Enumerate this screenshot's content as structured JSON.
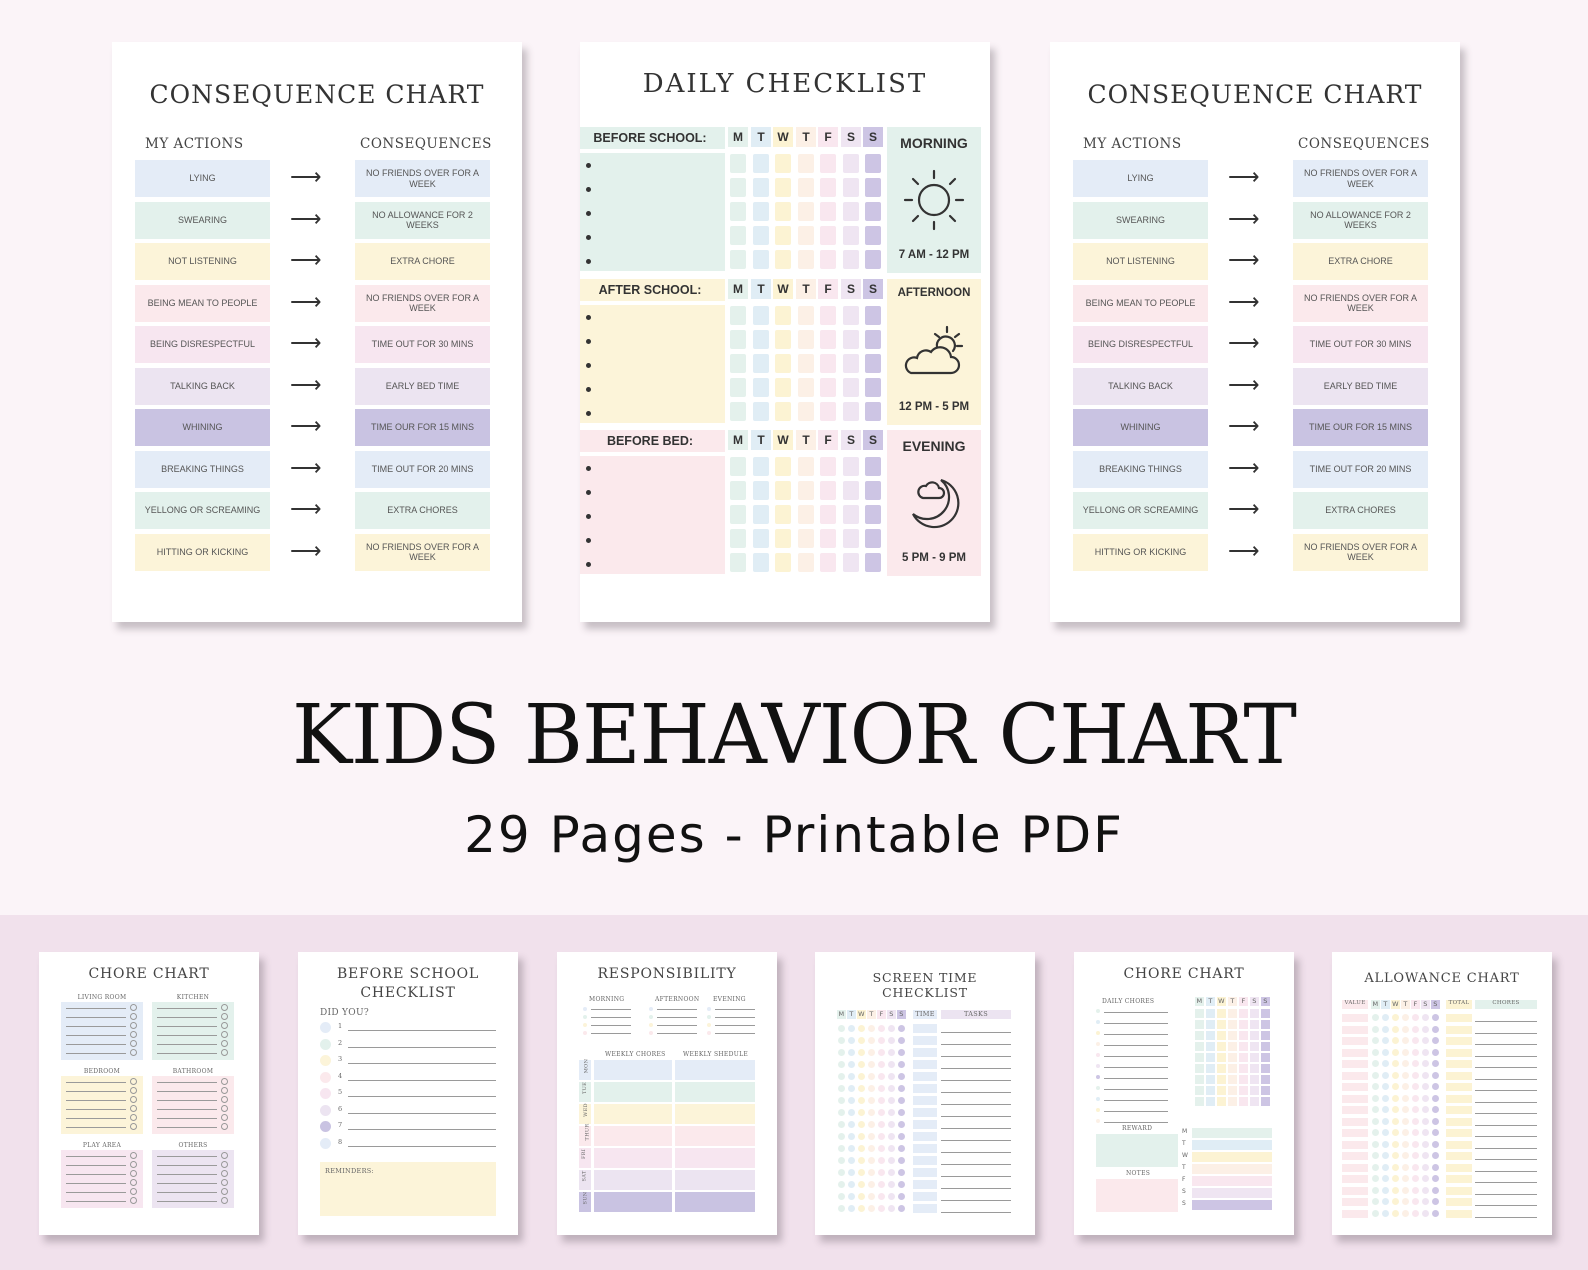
{
  "consequence_chart": {
    "title": "CONSEQUENCE CHART",
    "actions_header": "MY ACTIONS",
    "consequences_header": "CONSEQUENCES",
    "actions": [
      "LYING",
      "SWEARING",
      "NOT LISTENING",
      "BEING MEAN TO PEOPLE",
      "BEING DISRESPECTFUL",
      "TALKING BACK",
      "WHINING",
      "BREAKING THINGS",
      "YELLONG OR SCREAMING",
      "HITTING OR KICKING"
    ],
    "consequences": [
      "NO FRIENDS OVER FOR A WEEK",
      "NO ALLOWANCE FOR 2 WEEKS",
      "EXTRA CHORE",
      "NO FRIENDS OVER FOR A WEEK",
      "TIME OUT FOR 30 MINS",
      "EARLY BED TIME",
      "TIME OUR FOR 15 MINS",
      "TIME OUT FOR 20 MINS",
      "EXTRA CHORES",
      "NO FRIENDS OVER FOR A WEEK"
    ],
    "row_colors": [
      "#e4ecf7",
      "#e3f1ec",
      "#fcf4d9",
      "#fbe9ec",
      "#f7e6f0",
      "#ece4f1",
      "#c9c3e2",
      "#e4ecf7",
      "#e3f1ec",
      "#fcf4d9"
    ]
  },
  "daily_checklist": {
    "title": "DAILY CHECKLIST",
    "days": [
      "M",
      "T",
      "W",
      "T",
      "F",
      "S",
      "S"
    ],
    "day_colors": [
      "#e4f1ec",
      "#e0edf5",
      "#fcf3d3",
      "#fcf0e6",
      "#f9e7ef",
      "#efe5f2",
      "#cdc5e4"
    ],
    "sections": [
      {
        "label": "BEFORE SCHOOL:",
        "color": "#e3f1ec",
        "side_title": "MORNING",
        "side_time": "7 AM - 12 PM",
        "side_color": "#e3f1ec",
        "icon": "sun-icon"
      },
      {
        "label": "AFTER SCHOOL:",
        "color": "#fcf4d9",
        "side_title": "AFTERNOON",
        "side_time": "12 PM - 5 PM",
        "side_color": "#fcf4d9",
        "icon": "cloud-sun-icon"
      },
      {
        "label": "BEFORE BED:",
        "color": "#fbe9ec",
        "side_title": "EVENING",
        "side_time": "5 PM - 9 PM",
        "side_color": "#fbe9ec",
        "icon": "moon-cloud-icon"
      }
    ]
  },
  "headline": {
    "title": "KIDS BEHAVIOR CHART",
    "subtitle": "29 Pages - Printable PDF"
  },
  "previews": {
    "chore_chart_1": {
      "title": "CHORE CHART",
      "zones": [
        "LIVING ROOM",
        "KITCHEN",
        "BEDROOM",
        "BATHROOM",
        "PLAY AREA",
        "OTHERS"
      ]
    },
    "before_school": {
      "title_line1": "BEFORE SCHOOL",
      "title_line2": "CHECKLIST",
      "prompt": "DID YOU?",
      "items": [
        "1",
        "2",
        "3",
        "4",
        "5",
        "6",
        "7",
        "8"
      ],
      "reminders": "REMINDERS:"
    },
    "responsibility": {
      "title": "RESPONSIBILITY",
      "periods": [
        "MORNING",
        "AFTERNOON",
        "EVENING"
      ],
      "weekly_chores": "WEEKLY CHORES",
      "weekly_schedule": "WEEKLY SHEDULE",
      "days": [
        "MON",
        "TUE",
        "WED",
        "THUR",
        "FRI",
        "SAT",
        "SUN"
      ]
    },
    "screen_time": {
      "title_line1": "SCREEN TIME",
      "title_line2": "CHECKLIST",
      "days": [
        "M",
        "T",
        "W",
        "T",
        "F",
        "S",
        "S"
      ],
      "time": "TIME",
      "tasks": "TASKS"
    },
    "chore_chart_2": {
      "title": "CHORE CHART",
      "daily": "DAILY CHORES",
      "days": [
        "M",
        "T",
        "W",
        "T",
        "F",
        "S",
        "S"
      ],
      "reward": "REWARD",
      "notes": "NOTES"
    },
    "allowance": {
      "title": "ALLOWANCE CHART",
      "value": "VALUE",
      "days": [
        "M",
        "T",
        "W",
        "T",
        "F",
        "S",
        "S"
      ],
      "total": "TOTAL",
      "chores": "CHORES"
    }
  }
}
